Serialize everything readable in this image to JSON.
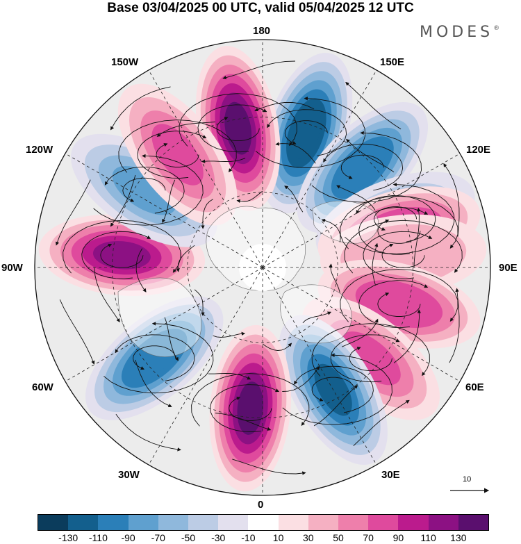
{
  "title": "Base 03/04/2025 00 UTC, valid 05/04/2025 12 UTC",
  "brand": "MODES",
  "brand_mark": "®",
  "longitude_labels": {
    "top": "180",
    "bottom": "0",
    "left": "90W",
    "right": "90E",
    "upper_left": "150W",
    "upper_right": "150E",
    "mid_upper_left": "120W",
    "mid_upper_right": "120E",
    "lower_left": "60W",
    "lower_right": "60E",
    "bottom_left": "30W",
    "bottom_right": "30E"
  },
  "reference_vector": {
    "label": "10"
  },
  "colorbar": {
    "colors": [
      "#0b3c5c",
      "#135f8d",
      "#2b7fb8",
      "#5fa0cf",
      "#8fb8dc",
      "#bccce5",
      "#e3e0ee",
      "#ffffff",
      "#fbdfe3",
      "#f5b0c2",
      "#ee7fab",
      "#df4a9d",
      "#bb1b8d",
      "#8c1183",
      "#5a0f6e"
    ],
    "tick_labels": [
      "-130",
      "-110",
      "-90",
      "-70",
      "-50",
      "-30",
      "-10",
      "10",
      "30",
      "50",
      "70",
      "90",
      "110",
      "130"
    ]
  },
  "map_data": {
    "projection": "north-polar-stereographic",
    "colors": {
      "background": "#ececec",
      "coastline": "#666666",
      "streamline": "#111111",
      "graticule": "#222222"
    },
    "anomaly_centers": [
      {
        "lon": 162,
        "value": -125
      },
      {
        "lon": -170,
        "value": 125
      },
      {
        "lon": 135,
        "value": -100
      },
      {
        "lon": 110,
        "value": -45
      },
      {
        "lon": 105,
        "value": 75
      },
      {
        "lon": 95,
        "value": 40
      },
      {
        "lon": 75,
        "value": 75
      },
      {
        "lon": 50,
        "value": 70
      },
      {
        "lon": 30,
        "value": -110
      },
      {
        "lon": -5,
        "value": 125
      },
      {
        "lon": -50,
        "value": -95
      },
      {
        "lon": -95,
        "value": 105
      },
      {
        "lon": -123,
        "value": -70
      },
      {
        "lon": -143,
        "value": 70
      }
    ]
  }
}
